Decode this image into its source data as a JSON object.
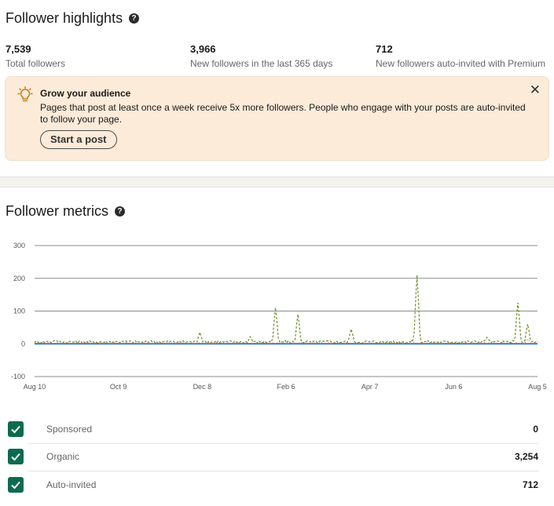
{
  "highlights": {
    "title": "Follower highlights",
    "help_icon": "?",
    "stats": [
      {
        "value": "7,539",
        "label": "Total followers"
      },
      {
        "value": "3,966",
        "label": "New followers in the last 365 days"
      },
      {
        "value": "712",
        "label": "New followers auto-invited with Premium"
      }
    ]
  },
  "banner": {
    "icon": "lightbulb-icon",
    "title": "Grow your audience",
    "text": "Pages that post at least once a week receive 5x more followers. People who engage with your posts are auto-invited to follow your page.",
    "button_label": "Start a post",
    "close_label": "✕"
  },
  "metrics": {
    "title": "Follower metrics",
    "help_icon": "?"
  },
  "colors": {
    "sponsored": "#3a7bd5",
    "organic": "#6f8f2a",
    "auto_invited": "#d9534f",
    "checkbox": "#0c6b4f"
  },
  "chart_data": {
    "type": "line",
    "x_start": "Aug 10",
    "x_end": "Aug 5",
    "x_ticks": [
      "Aug 10",
      "Oct 9",
      "Dec 8",
      "Feb 6",
      "Apr 7",
      "Jun 6",
      "Aug 5"
    ],
    "y_ticks": [
      300,
      200,
      100,
      0,
      -100
    ],
    "ylim": [
      -100,
      300
    ],
    "grid": true,
    "series": [
      {
        "name": "Sponsored",
        "style": "solid",
        "peaks": []
      },
      {
        "name": "Organic",
        "style": "dashed",
        "baseline": 6,
        "peaks": [
          [
            0.08,
            10
          ],
          [
            0.26,
            6
          ],
          [
            0.46,
            10
          ],
          [
            0.66,
            35
          ],
          [
            0.86,
            22
          ],
          [
            0.96,
            110
          ],
          [
            1.05,
            90
          ],
          [
            1.26,
            45
          ],
          [
            1.52,
            210
          ],
          [
            1.8,
            20
          ],
          [
            1.92,
            125
          ],
          [
            1.96,
            60
          ]
        ]
      },
      {
        "name": "Auto-invited",
        "style": "dotted",
        "baseline": 2,
        "peaks": [
          [
            1.0,
            8
          ],
          [
            1.5,
            10
          ],
          [
            1.96,
            15
          ]
        ]
      }
    ]
  },
  "legend": [
    {
      "name": "Sponsored",
      "value": "0",
      "style": "solid"
    },
    {
      "name": "Organic",
      "value": "3,254",
      "style": "dashed"
    },
    {
      "name": "Auto-invited",
      "value": "712",
      "style": "dotted"
    }
  ]
}
